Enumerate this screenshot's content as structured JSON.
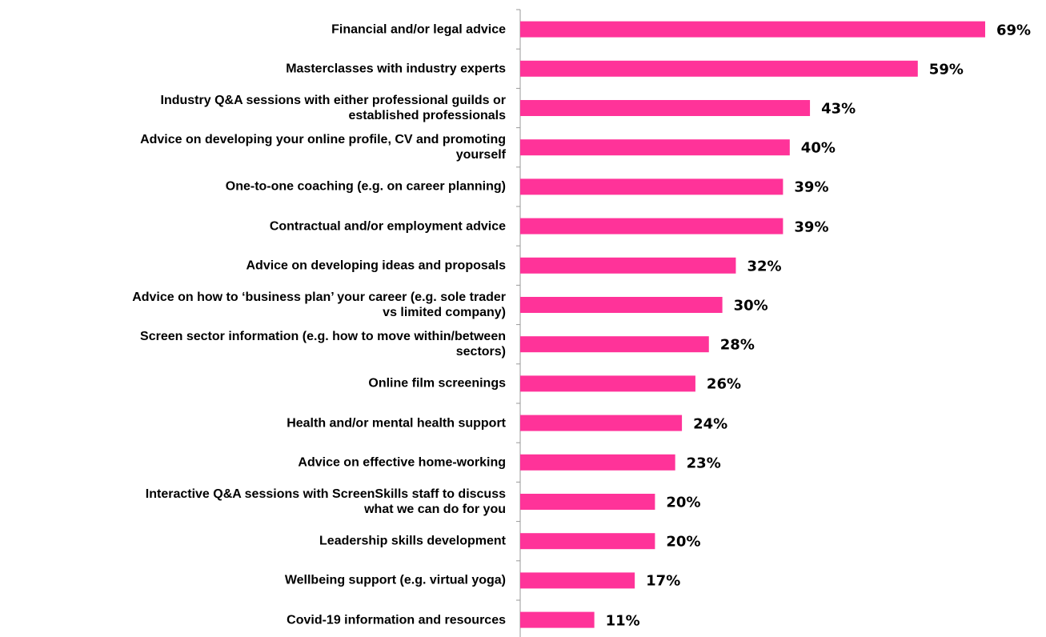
{
  "chart_data": {
    "type": "bar",
    "orientation": "horizontal",
    "color": "#ff3399",
    "categories": [
      "Financial and/or legal advice",
      "Masterclasses with industry experts",
      "Industry Q&A sessions with either professional guilds or\nestablished professionals",
      "Advice on developing your online profile, CV and promoting\nyourself",
      "One-to-one coaching (e.g. on career planning)",
      "Contractual and/or employment advice",
      "Advice on developing ideas and proposals",
      "Advice on how to ‘business plan’ your career (e.g. sole trader\nvs limited company)",
      "Screen sector information (e.g. how to move within/between\nsectors)",
      "Online film screenings",
      "Health and/or mental health support",
      "Advice on effective home-working",
      "Interactive Q&A sessions with ScreenSkills staff to discuss\nwhat we can do for you",
      "Leadership skills development",
      "Wellbeing support (e.g. virtual yoga)",
      "Covid-19 information and resources"
    ],
    "values": [
      69,
      59,
      43,
      40,
      39,
      39,
      32,
      30,
      28,
      26,
      24,
      23,
      20,
      20,
      17,
      11
    ],
    "value_labels": [
      "69%",
      "59%",
      "43%",
      "40%",
      "39%",
      "39%",
      "32%",
      "30%",
      "28%",
      "26%",
      "24%",
      "23%",
      "20%",
      "20%",
      "17%",
      "11%"
    ]
  }
}
